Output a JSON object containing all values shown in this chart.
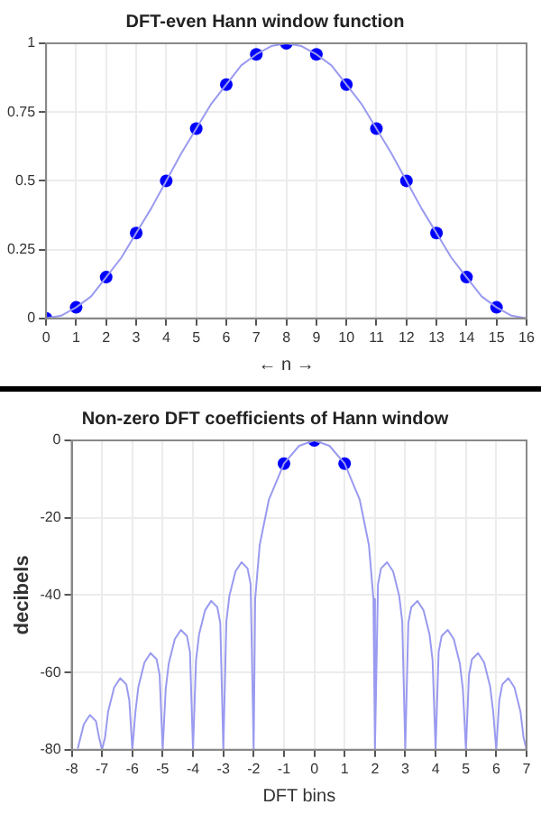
{
  "chart_data": [
    {
      "type": "line",
      "title": "DFT-even Hann window function",
      "xlabel": "← n →",
      "xlim": [
        0,
        16
      ],
      "xticks": [
        0,
        1,
        2,
        3,
        4,
        5,
        6,
        7,
        8,
        9,
        10,
        11,
        12,
        13,
        14,
        15,
        16
      ],
      "ylim": [
        0,
        1
      ],
      "yticks": [
        0,
        0.25,
        0.5,
        0.75,
        1
      ],
      "grid": true,
      "legend": false,
      "series": [
        {
          "type": "line",
          "color": "#9a9af0",
          "marker": "none",
          "x": [
            0,
            0.5,
            1,
            1.5,
            2,
            2.5,
            3,
            3.5,
            4,
            4.5,
            5,
            5.5,
            6,
            6.5,
            7,
            7.5,
            8,
            8.5,
            9,
            9.5,
            10,
            10.5,
            11,
            11.5,
            12,
            12.5,
            13,
            13.5,
            14,
            14.5,
            15,
            15.5,
            16
          ],
          "values": [
            0,
            0.01,
            0.04,
            0.08,
            0.15,
            0.22,
            0.31,
            0.4,
            0.5,
            0.6,
            0.69,
            0.78,
            0.85,
            0.92,
            0.96,
            0.99,
            1,
            0.99,
            0.96,
            0.92,
            0.85,
            0.78,
            0.69,
            0.6,
            0.5,
            0.4,
            0.31,
            0.22,
            0.15,
            0.08,
            0.04,
            0.01,
            0
          ]
        },
        {
          "type": "scatter",
          "color": "#0000ff",
          "marker": "circle",
          "x": [
            0,
            1,
            2,
            3,
            4,
            5,
            6,
            7,
            8,
            9,
            10,
            11,
            12,
            13,
            14,
            15
          ],
          "values": [
            0,
            0.04,
            0.15,
            0.31,
            0.5,
            0.69,
            0.85,
            0.96,
            1,
            0.96,
            0.85,
            0.69,
            0.5,
            0.31,
            0.15,
            0.04
          ]
        }
      ]
    },
    {
      "type": "line",
      "title": "Non-zero DFT coefficients of Hann window",
      "xlabel": "DFT bins",
      "ylabel": "decibels",
      "xlim": [
        -8,
        7
      ],
      "xticks": [
        -8,
        -7,
        -6,
        -5,
        -4,
        -3,
        -2,
        -1,
        0,
        1,
        2,
        3,
        4,
        5,
        6,
        7
      ],
      "ylim": [
        -80,
        0
      ],
      "yticks": [
        -80,
        -60,
        -40,
        -20,
        0
      ],
      "grid": true,
      "legend": false,
      "series": [
        {
          "type": "line",
          "color": "#9a9af0",
          "marker": "none",
          "x": [
            -7.8,
            -7.6,
            -7.4,
            -7.2,
            -7.1,
            -7,
            -6.9,
            -6.8,
            -6.6,
            -6.4,
            -6.2,
            -6.1,
            -6,
            -5.9,
            -5.8,
            -5.6,
            -5.4,
            -5.2,
            -5.1,
            -5,
            -4.9,
            -4.8,
            -4.6,
            -4.4,
            -4.2,
            -4.1,
            -4,
            -3.9,
            -3.8,
            -3.6,
            -3.4,
            -3.2,
            -3.1,
            -3,
            -2.9,
            -2.8,
            -2.6,
            -2.4,
            -2.2,
            -2.1,
            -2,
            -1.95,
            -1.8,
            -1.5,
            -1,
            -0.5,
            0,
            0.5,
            1,
            1.5,
            1.8,
            1.95,
            2,
            2.1,
            2.2,
            2.4,
            2.6,
            2.8,
            2.9,
            3,
            3.1,
            3.2,
            3.4,
            3.6,
            3.8,
            3.9,
            4,
            4.1,
            4.2,
            4.4,
            4.6,
            4.8,
            4.9,
            5,
            5.1,
            5.2,
            5.4,
            5.6,
            5.8,
            5.9,
            6,
            6.1,
            6.2,
            6.4,
            6.6,
            6.8,
            6.9,
            7
          ],
          "values": [
            -79.7,
            -73.4,
            -71,
            -72.6,
            -76.7,
            -80,
            -76.8,
            -70.2,
            -63.9,
            -61.5,
            -63.1,
            -67.2,
            -80,
            -70.3,
            -63.7,
            -57.4,
            -55,
            -56.6,
            -60.7,
            -80,
            -64.3,
            -57.7,
            -51.4,
            -49,
            -50.6,
            -54.7,
            -80,
            -56.8,
            -50.2,
            -43.9,
            -41.5,
            -43.1,
            -47.2,
            -80,
            -46.8,
            -40.2,
            -33.9,
            -31.5,
            -33.1,
            -37.2,
            -80,
            -41,
            -27,
            -15.4,
            -6,
            -1.4,
            0,
            -1.4,
            -6,
            -15.4,
            -27,
            -41,
            -80,
            -37.2,
            -33.1,
            -31.5,
            -33.9,
            -40.2,
            -46.8,
            -80,
            -47.2,
            -43.1,
            -41.5,
            -43.9,
            -50.2,
            -56.8,
            -80,
            -54.7,
            -50.6,
            -49,
            -51.4,
            -57.7,
            -64.3,
            -80,
            -60.7,
            -56.6,
            -55,
            -57.4,
            -63.7,
            -70.3,
            -80,
            -67.2,
            -63.1,
            -61.5,
            -63.9,
            -70.2,
            -76.8,
            -80
          ]
        },
        {
          "type": "scatter",
          "color": "#0000ff",
          "marker": "circle",
          "x": [
            -1,
            0,
            1
          ],
          "values": [
            -6,
            0,
            -6
          ]
        }
      ]
    }
  ]
}
